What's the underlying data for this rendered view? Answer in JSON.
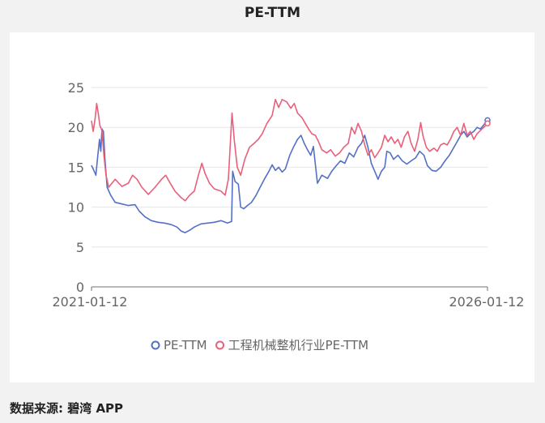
{
  "title": "PE-TTM",
  "source": "数据来源: 碧湾 APP",
  "colors": {
    "pe": "#5470c6",
    "industry": "#e8607a",
    "grid": "#e6e6e6",
    "axis": "#666666"
  },
  "chart_data": {
    "type": "line",
    "title": "PE-TTM",
    "xlabel": "",
    "ylabel": "",
    "ylim": [
      0,
      25
    ],
    "yticks": [
      0,
      5,
      10,
      15,
      20,
      25
    ],
    "xlim": [
      "2021-01-12",
      "2026-01-12"
    ],
    "xticks": [
      "2021-01-12",
      "2026-01-12"
    ],
    "legend_position": "bottom-center",
    "grid": true,
    "series": [
      {
        "name": "PE-TTM",
        "color": "#5470c6",
        "points": [
          [
            "2021-01-12",
            15.2
          ],
          [
            "2021-01-20",
            14.8
          ],
          [
            "2021-02-01",
            14.0
          ],
          [
            "2021-02-10",
            16.5
          ],
          [
            "2021-02-18",
            18.5
          ],
          [
            "2021-02-24",
            17.0
          ],
          [
            "2021-03-01",
            19.8
          ],
          [
            "2021-03-08",
            19.5
          ],
          [
            "2021-03-15",
            16.0
          ],
          [
            "2021-03-25",
            12.5
          ],
          [
            "2021-04-10",
            11.5
          ],
          [
            "2021-05-01",
            10.6
          ],
          [
            "2021-06-01",
            10.4
          ],
          [
            "2021-07-01",
            10.2
          ],
          [
            "2021-08-01",
            10.3
          ],
          [
            "2021-08-20",
            9.5
          ],
          [
            "2021-09-15",
            8.8
          ],
          [
            "2021-10-15",
            8.3
          ],
          [
            "2021-11-15",
            8.1
          ],
          [
            "2021-12-15",
            8.0
          ],
          [
            "2022-01-15",
            7.8
          ],
          [
            "2022-02-10",
            7.5
          ],
          [
            "2022-03-01",
            7.0
          ],
          [
            "2022-03-20",
            6.8
          ],
          [
            "2022-04-10",
            7.1
          ],
          [
            "2022-05-01",
            7.5
          ],
          [
            "2022-06-01",
            7.9
          ],
          [
            "2022-07-01",
            8.0
          ],
          [
            "2022-08-01",
            8.1
          ],
          [
            "2022-09-01",
            8.3
          ],
          [
            "2022-10-01",
            8.0
          ],
          [
            "2022-10-20",
            8.2
          ],
          [
            "2022-10-25",
            14.5
          ],
          [
            "2022-11-05",
            13.2
          ],
          [
            "2022-11-20",
            12.9
          ],
          [
            "2022-12-01",
            10.0
          ],
          [
            "2022-12-15",
            9.8
          ],
          [
            "2023-01-01",
            10.2
          ],
          [
            "2023-01-20",
            10.6
          ],
          [
            "2023-02-10",
            11.5
          ],
          [
            "2023-03-01",
            12.5
          ],
          [
            "2023-03-20",
            13.5
          ],
          [
            "2023-04-10",
            14.5
          ],
          [
            "2023-04-25",
            15.3
          ],
          [
            "2023-05-10",
            14.6
          ],
          [
            "2023-05-25",
            15.0
          ],
          [
            "2023-06-10",
            14.4
          ],
          [
            "2023-06-25",
            14.8
          ],
          [
            "2023-07-15",
            16.5
          ],
          [
            "2023-08-01",
            17.5
          ],
          [
            "2023-08-20",
            18.5
          ],
          [
            "2023-09-05",
            19.0
          ],
          [
            "2023-09-20",
            18.0
          ],
          [
            "2023-10-05",
            17.2
          ],
          [
            "2023-10-20",
            16.5
          ],
          [
            "2023-11-01",
            17.6
          ],
          [
            "2023-11-20",
            13.0
          ],
          [
            "2023-12-10",
            14.0
          ],
          [
            "2024-01-05",
            13.6
          ],
          [
            "2024-01-25",
            14.5
          ],
          [
            "2024-02-15",
            15.2
          ],
          [
            "2024-03-05",
            15.8
          ],
          [
            "2024-03-25",
            15.5
          ],
          [
            "2024-04-15",
            16.8
          ],
          [
            "2024-05-05",
            16.3
          ],
          [
            "2024-05-25",
            17.5
          ],
          [
            "2024-06-10",
            18.0
          ],
          [
            "2024-06-25",
            19.0
          ],
          [
            "2024-07-10",
            17.5
          ],
          [
            "2024-07-25",
            15.5
          ],
          [
            "2024-08-10",
            14.5
          ],
          [
            "2024-08-25",
            13.5
          ],
          [
            "2024-09-10",
            14.5
          ],
          [
            "2024-09-25",
            15.0
          ],
          [
            "2024-10-05",
            17.0
          ],
          [
            "2024-10-20",
            16.8
          ],
          [
            "2024-11-05",
            16.0
          ],
          [
            "2024-11-25",
            16.5
          ],
          [
            "2024-12-15",
            15.8
          ],
          [
            "2025-01-05",
            15.4
          ],
          [
            "2025-01-25",
            15.8
          ],
          [
            "2025-02-15",
            16.2
          ],
          [
            "2025-03-05",
            17.0
          ],
          [
            "2025-03-25",
            16.5
          ],
          [
            "2025-04-10",
            15.2
          ],
          [
            "2025-05-01",
            14.6
          ],
          [
            "2025-05-20",
            14.5
          ],
          [
            "2025-06-10",
            15.0
          ],
          [
            "2025-06-30",
            15.8
          ],
          [
            "2025-07-20",
            16.5
          ],
          [
            "2025-08-10",
            17.5
          ],
          [
            "2025-08-25",
            18.2
          ],
          [
            "2025-09-10",
            19.0
          ],
          [
            "2025-09-25",
            19.5
          ],
          [
            "2025-10-10",
            18.8
          ],
          [
            "2025-10-25",
            19.2
          ],
          [
            "2025-11-10",
            19.5
          ],
          [
            "2025-11-25",
            20.0
          ],
          [
            "2025-12-10",
            19.8
          ],
          [
            "2025-12-25",
            20.3
          ],
          [
            "2026-01-12",
            20.9
          ]
        ]
      },
      {
        "name": "工程机械整机行业PE-TTM",
        "color": "#e8607a",
        "points": [
          [
            "2021-01-12",
            20.8
          ],
          [
            "2021-01-20",
            19.5
          ],
          [
            "2021-01-28",
            21.0
          ],
          [
            "2021-02-05",
            23.0
          ],
          [
            "2021-02-12",
            21.8
          ],
          [
            "2021-02-20",
            20.2
          ],
          [
            "2021-03-01",
            19.6
          ],
          [
            "2021-03-10",
            16.5
          ],
          [
            "2021-03-20",
            14.0
          ],
          [
            "2021-04-01",
            12.5
          ],
          [
            "2021-05-01",
            13.5
          ],
          [
            "2021-06-01",
            12.6
          ],
          [
            "2021-07-01",
            13.0
          ],
          [
            "2021-07-20",
            14.0
          ],
          [
            "2021-08-10",
            13.5
          ],
          [
            "2021-09-01",
            12.5
          ],
          [
            "2021-10-01",
            11.6
          ],
          [
            "2021-11-01",
            12.5
          ],
          [
            "2021-12-01",
            13.5
          ],
          [
            "2021-12-20",
            14.0
          ],
          [
            "2022-01-10",
            13.0
          ],
          [
            "2022-02-01",
            12.0
          ],
          [
            "2022-03-01",
            11.2
          ],
          [
            "2022-03-20",
            10.8
          ],
          [
            "2022-04-10",
            11.5
          ],
          [
            "2022-05-01",
            12.0
          ],
          [
            "2022-05-20",
            14.0
          ],
          [
            "2022-06-05",
            15.5
          ],
          [
            "2022-06-20",
            14.2
          ],
          [
            "2022-07-10",
            13.0
          ],
          [
            "2022-08-01",
            12.3
          ],
          [
            "2022-09-01",
            12.0
          ],
          [
            "2022-09-20",
            11.5
          ],
          [
            "2022-10-05",
            13.5
          ],
          [
            "2022-10-15",
            18.5
          ],
          [
            "2022-10-22",
            21.8
          ],
          [
            "2022-11-01",
            18.5
          ],
          [
            "2022-11-15",
            15.0
          ],
          [
            "2022-12-01",
            14.0
          ],
          [
            "2022-12-20",
            16.0
          ],
          [
            "2023-01-10",
            17.5
          ],
          [
            "2023-02-01",
            18.0
          ],
          [
            "2023-02-20",
            18.5
          ],
          [
            "2023-03-10",
            19.2
          ],
          [
            "2023-04-01",
            20.5
          ],
          [
            "2023-04-25",
            21.5
          ],
          [
            "2023-05-10",
            23.5
          ],
          [
            "2023-05-25",
            22.5
          ],
          [
            "2023-06-10",
            23.5
          ],
          [
            "2023-07-01",
            23.2
          ],
          [
            "2023-07-20",
            22.4
          ],
          [
            "2023-08-05",
            23.0
          ],
          [
            "2023-08-20",
            21.8
          ],
          [
            "2023-09-10",
            21.2
          ],
          [
            "2023-09-25",
            20.5
          ],
          [
            "2023-10-10",
            19.8
          ],
          [
            "2023-10-25",
            19.2
          ],
          [
            "2023-11-10",
            19.0
          ],
          [
            "2023-11-25",
            18.2
          ],
          [
            "2023-12-10",
            17.2
          ],
          [
            "2024-01-01",
            16.8
          ],
          [
            "2024-01-20",
            17.2
          ],
          [
            "2024-02-10",
            16.4
          ],
          [
            "2024-03-01",
            16.8
          ],
          [
            "2024-03-20",
            17.5
          ],
          [
            "2024-04-10",
            18.0
          ],
          [
            "2024-04-25",
            20.0
          ],
          [
            "2024-05-10",
            19.2
          ],
          [
            "2024-05-25",
            20.5
          ],
          [
            "2024-06-10",
            19.5
          ],
          [
            "2024-06-25",
            17.8
          ],
          [
            "2024-07-10",
            16.5
          ],
          [
            "2024-07-25",
            17.2
          ],
          [
            "2024-08-10",
            16.2
          ],
          [
            "2024-08-25",
            16.8
          ],
          [
            "2024-09-10",
            17.5
          ],
          [
            "2024-09-25",
            19.0
          ],
          [
            "2024-10-10",
            18.2
          ],
          [
            "2024-10-25",
            18.8
          ],
          [
            "2024-11-10",
            18.0
          ],
          [
            "2024-11-25",
            18.5
          ],
          [
            "2024-12-10",
            17.5
          ],
          [
            "2024-12-25",
            18.8
          ],
          [
            "2025-01-10",
            19.5
          ],
          [
            "2025-01-25",
            18.0
          ],
          [
            "2025-02-10",
            17.0
          ],
          [
            "2025-02-25",
            18.5
          ],
          [
            "2025-03-10",
            20.6
          ],
          [
            "2025-03-20",
            19.0
          ],
          [
            "2025-04-05",
            17.5
          ],
          [
            "2025-04-20",
            17.0
          ],
          [
            "2025-05-10",
            17.4
          ],
          [
            "2025-05-25",
            17.0
          ],
          [
            "2025-06-10",
            17.8
          ],
          [
            "2025-06-25",
            18.0
          ],
          [
            "2025-07-10",
            17.8
          ],
          [
            "2025-07-25",
            18.5
          ],
          [
            "2025-08-10",
            19.5
          ],
          [
            "2025-08-25",
            20.0
          ],
          [
            "2025-09-10",
            19.0
          ],
          [
            "2025-09-25",
            20.5
          ],
          [
            "2025-10-10",
            19.0
          ],
          [
            "2025-10-25",
            19.5
          ],
          [
            "2025-11-10",
            18.5
          ],
          [
            "2025-11-25",
            19.2
          ],
          [
            "2025-12-10",
            19.6
          ],
          [
            "2025-12-25",
            20.0
          ],
          [
            "2026-01-12",
            20.5
          ]
        ]
      }
    ]
  }
}
